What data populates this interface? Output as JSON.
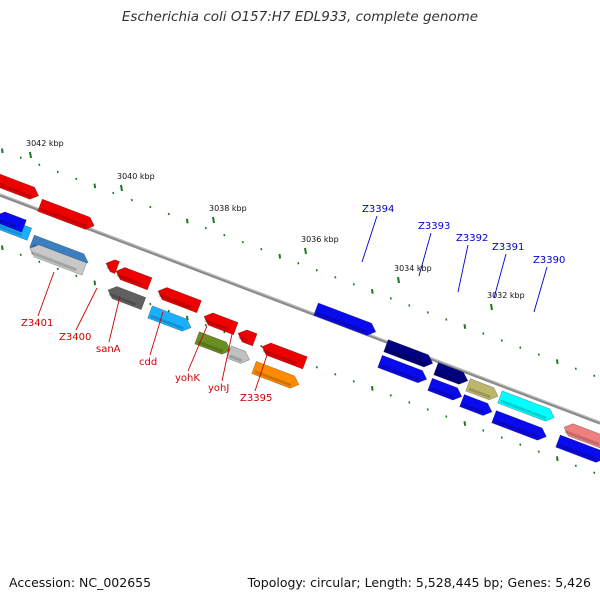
{
  "title": "Escherichia coli O157:H7 EDL933, complete genome",
  "footer": {
    "accession": "Accession: NC_002655",
    "summary": "Topology: circular; Length: 5,528,445 bp; Genes: 5,426"
  },
  "colors": {
    "label_red": "#cc0000",
    "label_blue": "#0000cc",
    "tick_green": "#1a7a1a",
    "backbone": "#8a8a8a"
  },
  "kbp_labels": [
    {
      "name": "kbp-3042",
      "text": "3042 kbp"
    },
    {
      "name": "kbp-3040",
      "text": "3040 kbp"
    },
    {
      "name": "kbp-3038",
      "text": "3038 kbp"
    },
    {
      "name": "kbp-3036",
      "text": "3036 kbp"
    },
    {
      "name": "kbp-3034",
      "text": "3034 kbp"
    },
    {
      "name": "kbp-3032",
      "text": "3032 kbp"
    }
  ],
  "gene_labels": [
    {
      "text": "Z3401",
      "strand": "minus"
    },
    {
      "text": "Z3400",
      "strand": "minus"
    },
    {
      "text": "sanA",
      "strand": "minus"
    },
    {
      "text": "cdd",
      "strand": "minus"
    },
    {
      "text": "yohK",
      "strand": "minus"
    },
    {
      "text": "yohJ",
      "strand": "minus"
    },
    {
      "text": "Z3395",
      "strand": "minus"
    },
    {
      "text": "Z3394",
      "strand": "plus"
    },
    {
      "text": "Z3393",
      "strand": "plus"
    },
    {
      "text": "Z3392",
      "strand": "plus"
    },
    {
      "text": "Z3391",
      "strand": "plus"
    },
    {
      "text": "Z3390",
      "strand": "plus"
    }
  ],
  "genes": [
    {
      "name": "gene-red-1",
      "color": "#ee0000"
    },
    {
      "name": "gene-red-2",
      "color": "#ee0000"
    },
    {
      "name": "gene-cyan-1",
      "color": "#1ab0ff"
    },
    {
      "name": "gene-steelblue",
      "color": "#3a7fc0"
    },
    {
      "name": "gene-lightgray-1",
      "color": "#c8c8c8"
    },
    {
      "name": "gene-red-small",
      "color": "#ee0000"
    },
    {
      "name": "gene-red-3",
      "color": "#ee0000"
    },
    {
      "name": "gene-darkgray",
      "color": "#606060"
    },
    {
      "name": "gene-red-4",
      "color": "#ee0000"
    },
    {
      "name": "gene-cyan-2",
      "color": "#1ab0ff"
    },
    {
      "name": "gene-red-5",
      "color": "#ee0000"
    },
    {
      "name": "gene-red-6",
      "color": "#ee0000"
    },
    {
      "name": "gene-olive",
      "color": "#6b8e23"
    },
    {
      "name": "gene-lightgray-2",
      "color": "#c0c0c0"
    },
    {
      "name": "gene-red-7",
      "color": "#ee0000"
    },
    {
      "name": "gene-orange",
      "color": "#ff8c00"
    },
    {
      "name": "gene-blue-1",
      "color": "#0a0aee"
    },
    {
      "name": "gene-navy-1",
      "color": "#000080"
    },
    {
      "name": "gene-navy-2",
      "color": "#000080"
    },
    {
      "name": "gene-khaki",
      "color": "#bdb76b"
    },
    {
      "name": "gene-cyan-3",
      "color": "#00ffff"
    },
    {
      "name": "gene-blue-2",
      "color": "#0a0aee"
    },
    {
      "name": "gene-blue-3",
      "color": "#0a0aee"
    },
    {
      "name": "gene-blue-4",
      "color": "#0a0aee"
    },
    {
      "name": "gene-blue-5",
      "color": "#0a0aee"
    },
    {
      "name": "gene-blue-6",
      "color": "#0a0aee"
    },
    {
      "name": "gene-salmon",
      "color": "#f08080"
    },
    {
      "name": "gene-blue-7",
      "color": "#0a0aee"
    }
  ]
}
